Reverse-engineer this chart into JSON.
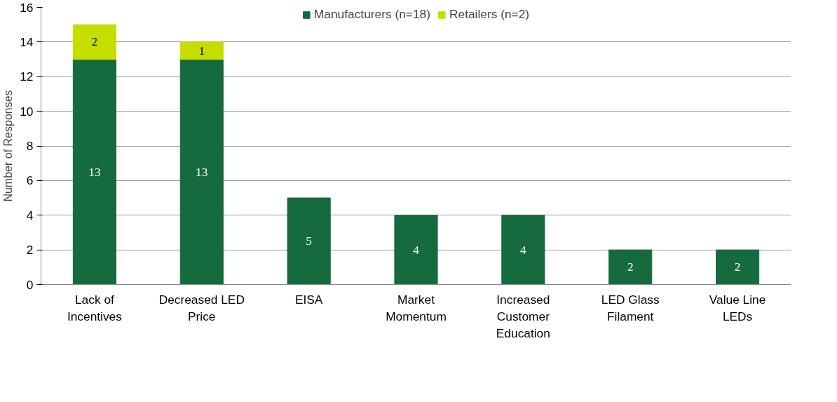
{
  "chart_data": {
    "type": "bar",
    "stacked": true,
    "ylabel": "Number of Responses",
    "categories": [
      "Lack of Incentives",
      "Decreased LED Price",
      "EISA",
      "Market Momentum",
      "Increased Customer Education",
      "LED Glass Filament",
      "Value Line LEDs"
    ],
    "series": [
      {
        "name": "Manufacturers (n=18)",
        "color": "#156b3e",
        "values": [
          13,
          13,
          5,
          4,
          4,
          2,
          2
        ]
      },
      {
        "name": "Retailers (n=2)",
        "color": "#c5de00",
        "values": [
          2,
          1,
          null,
          null,
          null,
          null,
          null
        ]
      }
    ],
    "ylim": [
      0,
      16
    ],
    "yticks": [
      0,
      2,
      4,
      6,
      8,
      10,
      12,
      14,
      16
    ],
    "grid": "y",
    "legend": "top",
    "data_labels": true
  }
}
